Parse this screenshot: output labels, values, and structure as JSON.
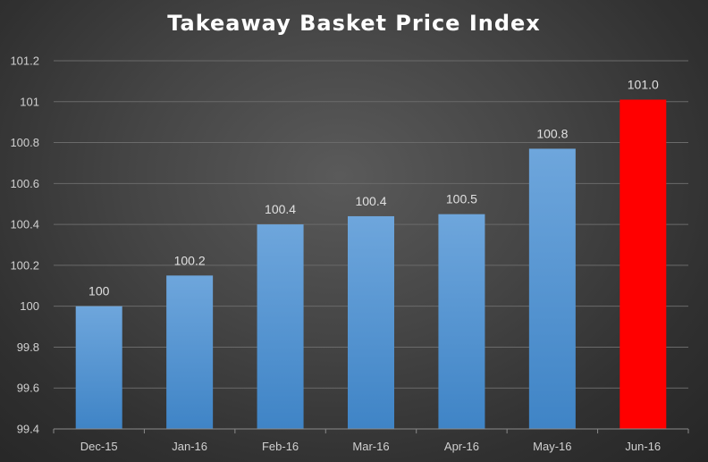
{
  "chart_data": {
    "type": "bar",
    "title": "Takeaway Basket Price Index",
    "categories": [
      "Dec-15",
      "Jan-16",
      "Feb-16",
      "Mar-16",
      "Apr-16",
      "May-16",
      "Jun-16"
    ],
    "values": [
      100.0,
      100.15,
      100.4,
      100.44,
      100.45,
      100.77,
      101.01
    ],
    "data_labels": [
      "100",
      "100.2",
      "100.4",
      "100.4",
      "100.5",
      "100.8",
      "101.0"
    ],
    "ylim": [
      99.4,
      101.2
    ],
    "yticks": [
      99.4,
      99.6,
      99.8,
      100,
      100.2,
      100.4,
      100.6,
      100.8,
      101,
      101.2
    ],
    "ytick_labels": [
      "99.4",
      "99.6",
      "99.8",
      "100",
      "100.2",
      "100.4",
      "100.6",
      "100.8",
      "101",
      "101.2"
    ],
    "xlabel": "",
    "ylabel": "",
    "grid": true,
    "legend": "none",
    "colors": {
      "bar": "#5b9bd5",
      "highlight": "#ff0000",
      "grid": "#6a6a6a",
      "axis": "#8a8a8a",
      "text": "#d9d9d9"
    },
    "highlight_index": 6
  }
}
